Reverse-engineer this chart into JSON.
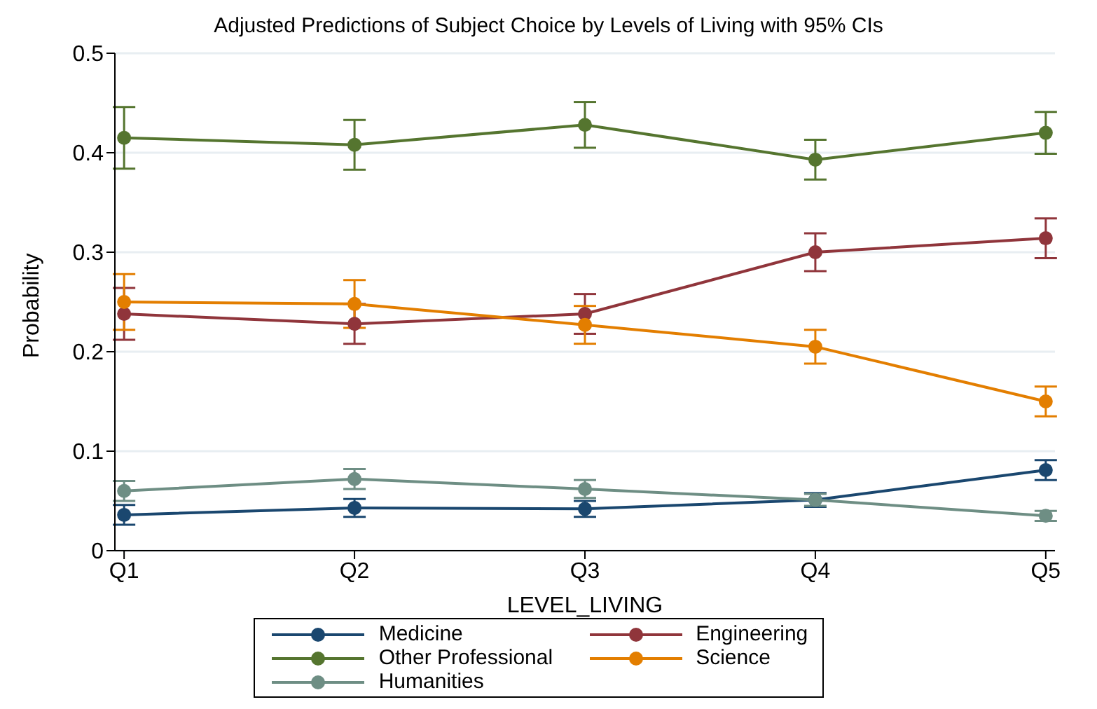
{
  "chart_data": {
    "type": "line",
    "title": "Adjusted Predictions of Subject Choice by Levels of Living with 95% CIs",
    "xlabel": "LEVEL_LIVING",
    "ylabel": "Probability",
    "categories": [
      "Q1",
      "Q2",
      "Q3",
      "Q4",
      "Q5"
    ],
    "ylim": [
      0,
      0.5
    ],
    "yticks": [
      {
        "value": 0,
        "label": "0"
      },
      0.1,
      0.2,
      0.3,
      0.4,
      0.5
    ],
    "grid": "y",
    "legend": "bottom",
    "marker": "circle",
    "line_style": "solid",
    "series": [
      {
        "name": "Medicine",
        "color": "#1a476f",
        "values": [
          0.036,
          0.043,
          0.042,
          0.051,
          0.081
        ],
        "errors": [
          0.01,
          0.009,
          0.008,
          0.007,
          0.01
        ]
      },
      {
        "name": "Engineering",
        "color": "#90353b",
        "values": [
          0.238,
          0.228,
          0.238,
          0.3,
          0.314
        ],
        "errors": [
          0.026,
          0.02,
          0.02,
          0.019,
          0.02
        ]
      },
      {
        "name": "Other Professional",
        "color": "#55752f",
        "values": [
          0.415,
          0.408,
          0.428,
          0.393,
          0.42
        ],
        "errors": [
          0.031,
          0.025,
          0.023,
          0.02,
          0.021
        ]
      },
      {
        "name": "Science",
        "color": "#e37e00",
        "values": [
          0.25,
          0.248,
          0.227,
          0.205,
          0.15
        ],
        "errors": [
          0.028,
          0.024,
          0.019,
          0.017,
          0.015
        ]
      },
      {
        "name": "Humanities",
        "color": "#6e8e84",
        "values": [
          0.06,
          0.072,
          0.062,
          0.051,
          0.035
        ],
        "errors": [
          0.01,
          0.01,
          0.009,
          0.006,
          0.005
        ]
      }
    ]
  }
}
